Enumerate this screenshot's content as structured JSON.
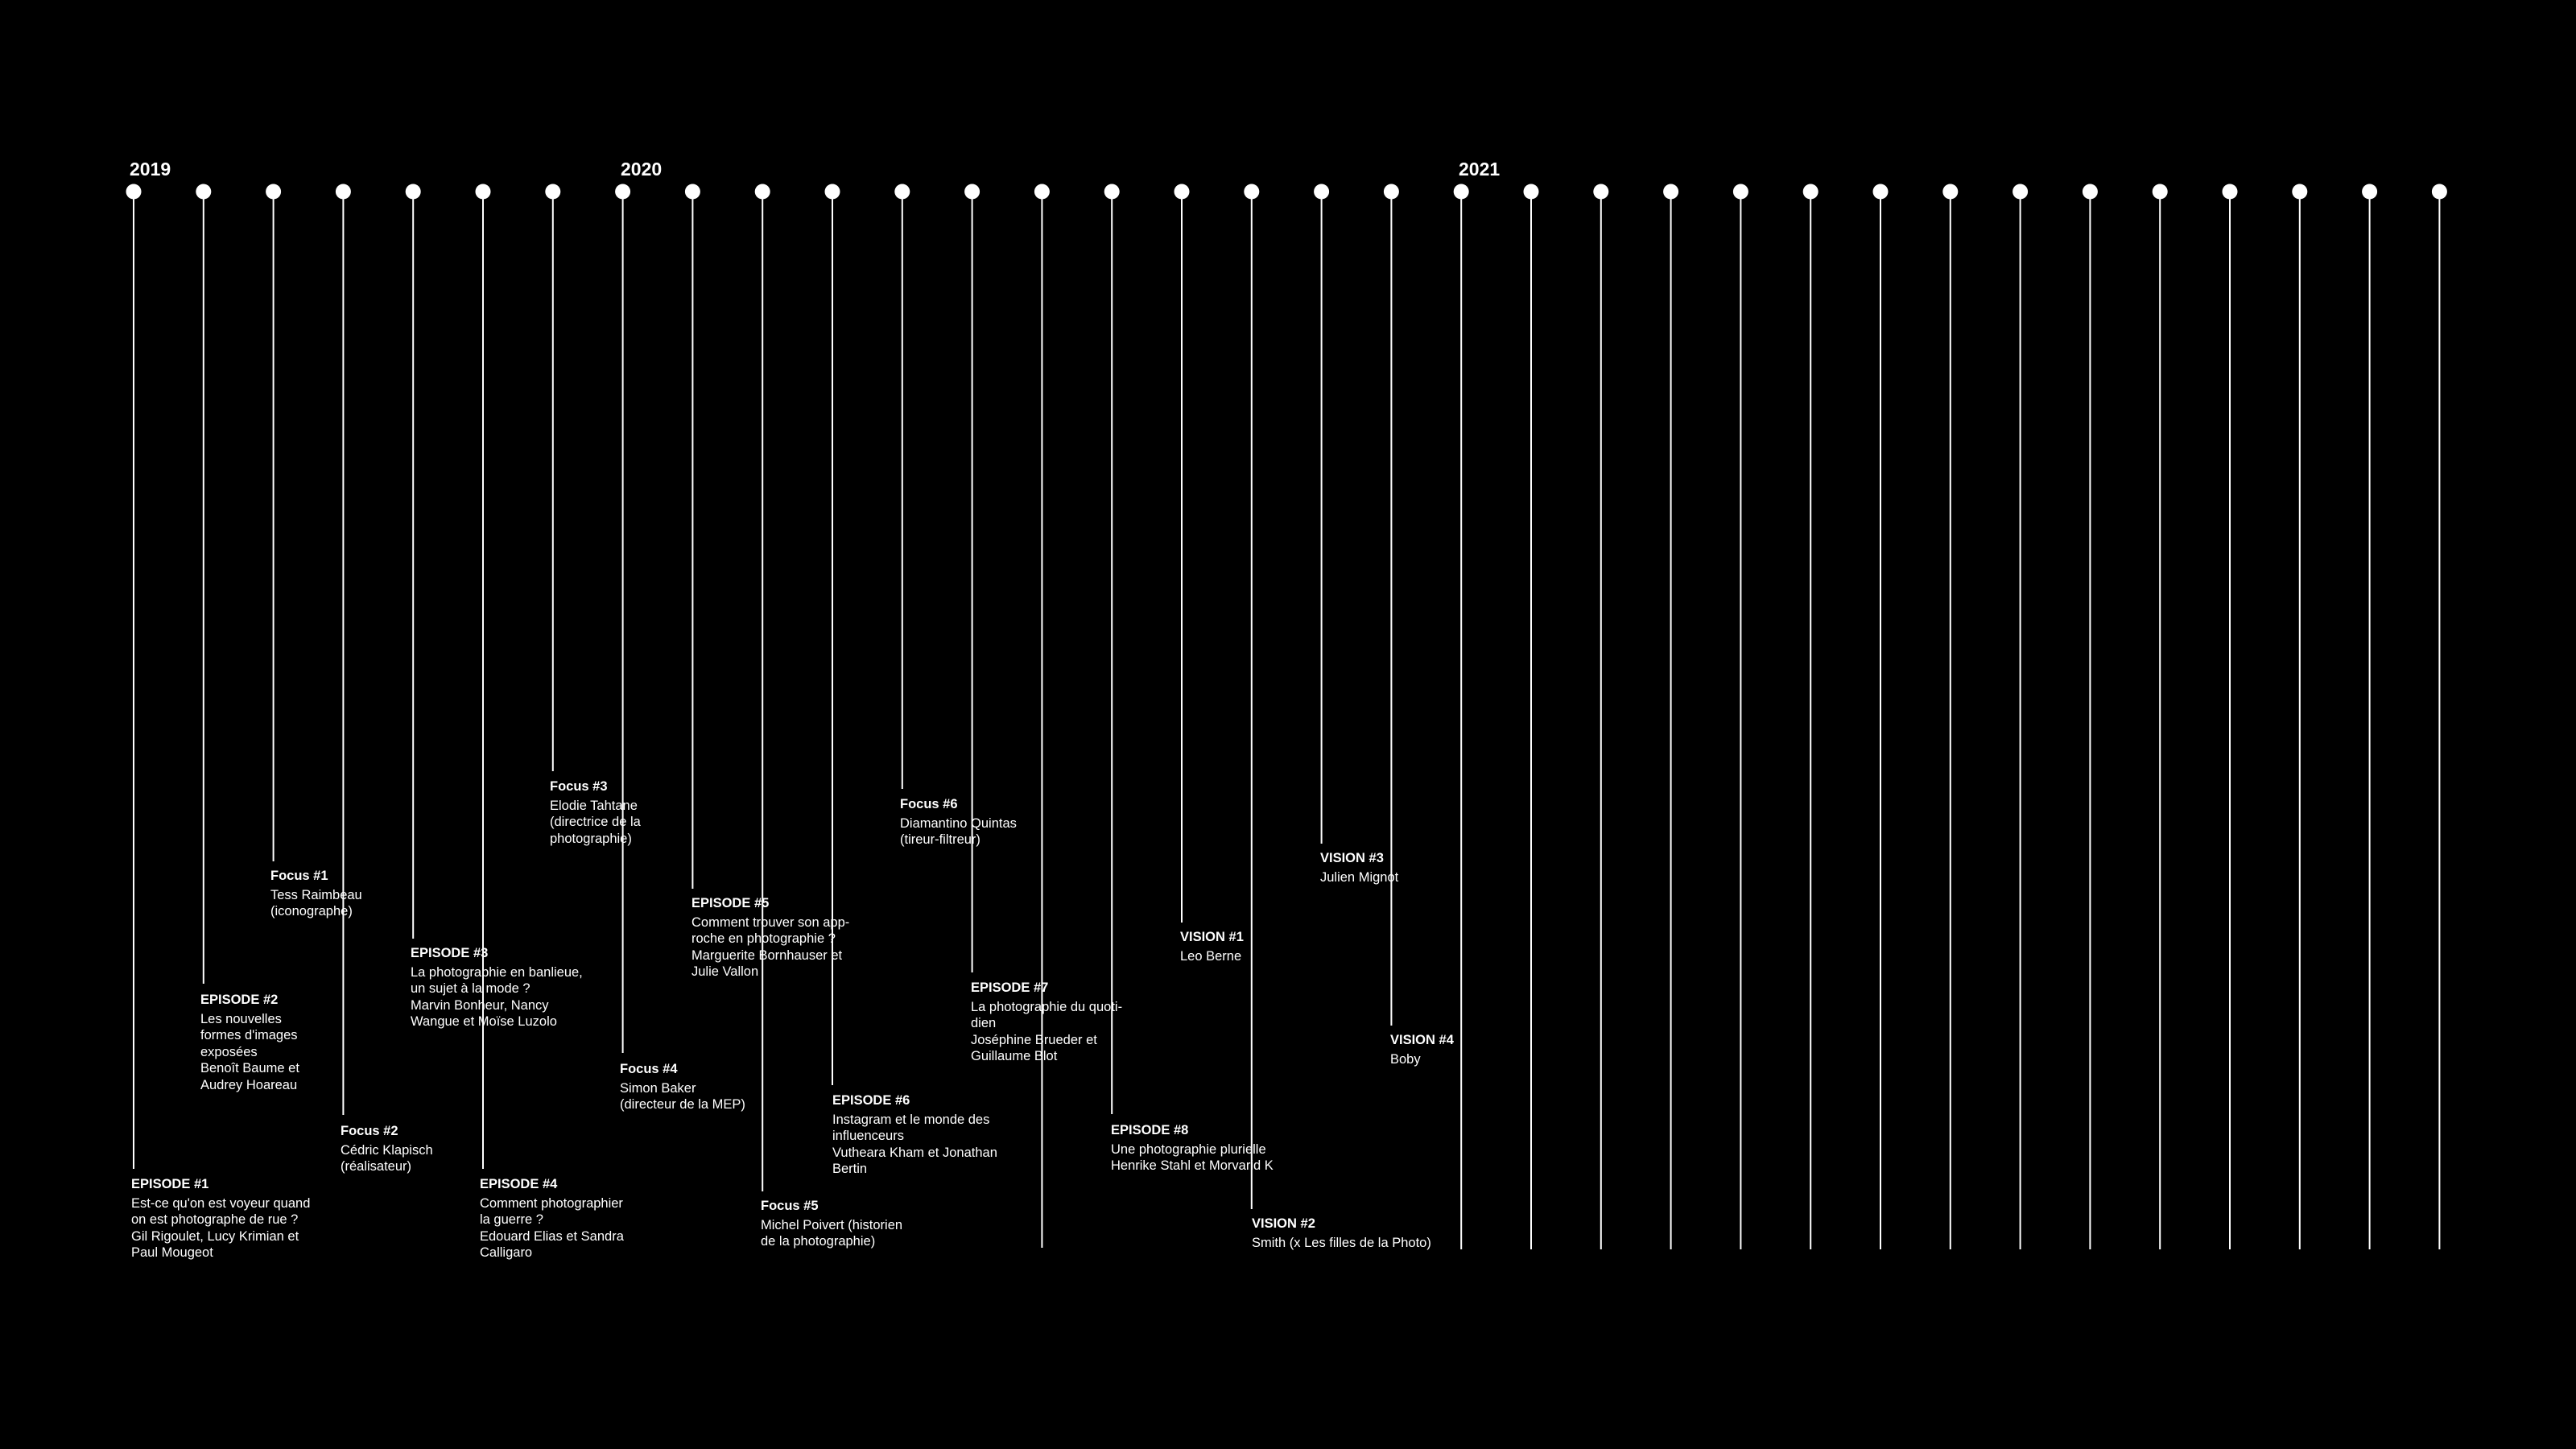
{
  "palette": {
    "background": "#000000",
    "foreground": "#ffffff"
  },
  "years": [
    "2019",
    "2020",
    "2021"
  ],
  "marker_count": 34,
  "events": [
    {
      "title": "EPISODE #1",
      "desc": "Est-ce qu'on est voyeur quand\non est photographe de rue ?\nGil Rigoulet, Lucy Krimian et\nPaul Mougeot"
    },
    {
      "title": "EPISODE #2",
      "desc": "Les nouvelles\nformes d'images\nexposées\nBenoît Baume et\nAudrey Hoareau"
    },
    {
      "title": "Focus #1",
      "desc": "Tess Raimbeau\n(iconographe)"
    },
    {
      "title": "Focus #2",
      "desc": "Cédric Klapisch\n(réalisateur)"
    },
    {
      "title": "EPISODE #3",
      "desc": "La photographie en banlieue,\nun sujet à la mode ?\nMarvin Bonheur, Nancy\nWangue et Moïse Luzolo"
    },
    {
      "title": "EPISODE #4",
      "desc": "Comment photographier\nla guerre ?\nEdouard Elias et Sandra\nCalligaro"
    },
    {
      "title": "Focus #3",
      "desc": "Elodie Tahtane\n(directrice de la\nphotographie)"
    },
    {
      "title": "Focus #4",
      "desc": "Simon Baker\n(directeur de la MEP)"
    },
    {
      "title": "EPISODE #5",
      "desc": "Comment trouver son app-\nroche en photographie ?\nMarguerite Bornhauser et\nJulie Vallon"
    },
    {
      "title": "Focus #5",
      "desc": "Michel Poivert (historien\nde la photographie)"
    },
    {
      "title": "EPISODE #6",
      "desc": "Instagram et le monde des\ninfluenceurs\nVutheara Kham et Jonathan\nBertin"
    },
    {
      "title": "Focus #6",
      "desc": "Diamantino Quintas\n(tireur-filtreur)"
    },
    {
      "title": "EPISODE #7",
      "desc": "La photographie du quoti-\ndien\nJoséphine Brueder et\nGuillaume Blot"
    },
    {
      "title": "",
      "desc": ""
    },
    {
      "title": "EPISODE #8",
      "desc": "Une photographie plurielle\nHenrike Stahl et Morvarid K"
    },
    {
      "title": "VISION #1",
      "desc": "Leo Berne"
    },
    {
      "title": "VISION #2",
      "desc": "Smith (x Les filles de la Photo)"
    },
    {
      "title": "VISION #3",
      "desc": "Julien Mignot"
    },
    {
      "title": "VISION #4",
      "desc": "Boby"
    }
  ]
}
